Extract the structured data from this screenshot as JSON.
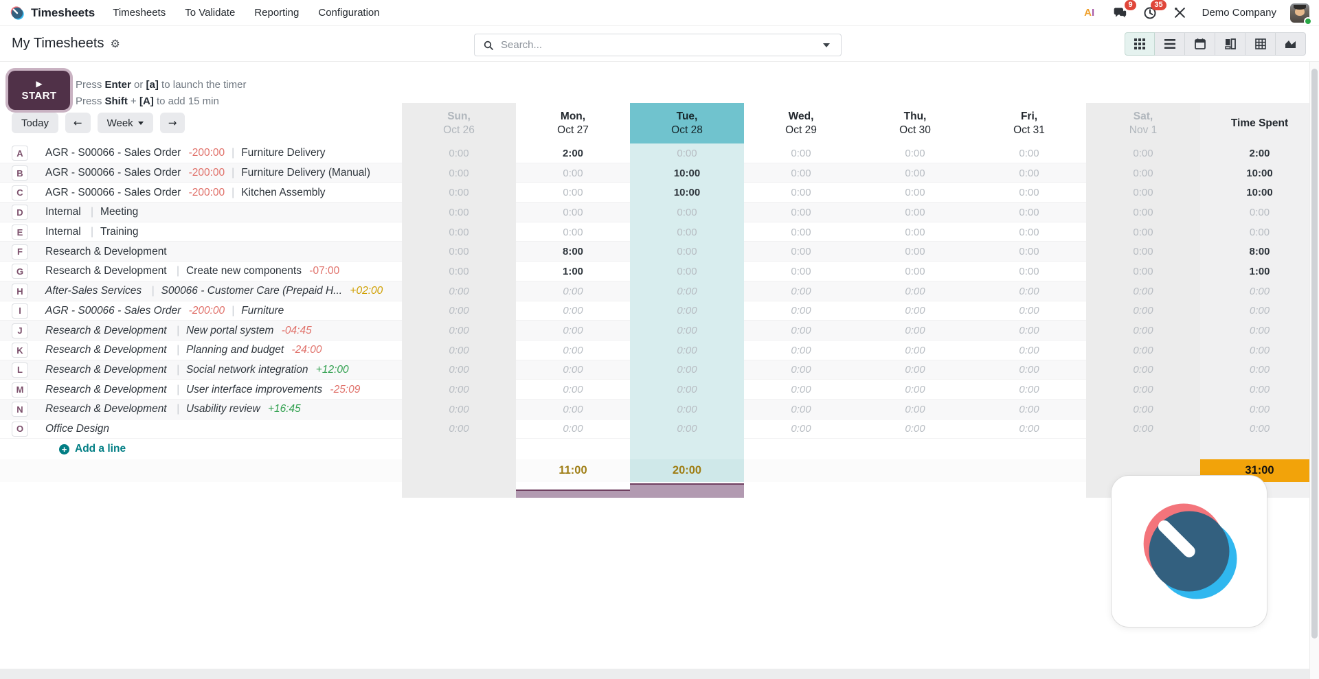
{
  "colors": {
    "accent_teal": "#70c3ce",
    "today_column_bg": "#d8edee",
    "weekend_bg": "#ececec",
    "time_spent_bg": "#f0f0f1",
    "total_orange_bg": "#f2a30a",
    "total_text_gold": "#9f7e15",
    "negative_red": "#e0716a",
    "positive_green": "#31a04f",
    "warning_amber": "#cf9f00",
    "brand_plum": "#714b67",
    "start_button_bg": "#503148",
    "bars_fill": "#b29ab1",
    "bars_border": "#6e3f60",
    "addline_teal": "#017e84",
    "badge_red": "#e0463a"
  },
  "nav": {
    "brand": "Timesheets",
    "items": [
      "Timesheets",
      "To Validate",
      "Reporting",
      "Configuration"
    ],
    "systray": {
      "ai_a": "A",
      "ai_i": "I",
      "messages_badge": "9",
      "activities_badge": "35",
      "company": "Demo Company"
    }
  },
  "control_panel": {
    "title": "My Timesheets",
    "search_placeholder": "Search...",
    "active_view": "grid",
    "views": [
      "grid",
      "list",
      "calendar",
      "kanban",
      "pivot",
      "graph"
    ]
  },
  "timer": {
    "start_label": "START",
    "hints": [
      {
        "segments": [
          {
            "text": "Press ",
            "bold": false
          },
          {
            "text": "Enter",
            "bold": true
          },
          {
            "text": " or ",
            "bold": false
          },
          {
            "text": "[a]",
            "bold": true
          },
          {
            "text": " to launch the timer",
            "bold": false
          }
        ]
      },
      {
        "segments": [
          {
            "text": "Press ",
            "bold": false
          },
          {
            "text": "Shift",
            "bold": true
          },
          {
            "text": " + ",
            "bold": false
          },
          {
            "text": "[A]",
            "bold": true
          },
          {
            "text": " to add 15 min",
            "bold": false
          }
        ]
      }
    ]
  },
  "grid": {
    "today_label": "Today",
    "range_label": "Week",
    "prev_arrow": "←",
    "next_arrow": "→",
    "columns": [
      {
        "label": "Sun,",
        "date": "Oct 26",
        "kind": "weekend"
      },
      {
        "label": "Mon,",
        "date": "Oct 27",
        "kind": "day"
      },
      {
        "label": "Tue,",
        "date": "Oct 28",
        "kind": "today"
      },
      {
        "label": "Wed,",
        "date": "Oct 29",
        "kind": "day"
      },
      {
        "label": "Thu,",
        "date": "Oct 30",
        "kind": "day"
      },
      {
        "label": "Fri,",
        "date": "Oct 31",
        "kind": "day"
      },
      {
        "label": "Sat,",
        "date": "Nov 1",
        "kind": "weekend"
      }
    ],
    "time_spent_header": "Time Spent",
    "rows": [
      {
        "letter": "A",
        "italic": false,
        "segments": [
          {
            "text": "AGR - S00066 - Sales Order",
            "kind": "name"
          },
          {
            "text": "-200:00",
            "kind": "neg"
          },
          {
            "text": "|",
            "kind": "sep"
          },
          {
            "text": "Furniture Delivery",
            "kind": "name"
          }
        ],
        "values": [
          "0:00",
          "2:00",
          "0:00",
          "0:00",
          "0:00",
          "0:00",
          "0:00"
        ],
        "total": "2:00"
      },
      {
        "letter": "B",
        "italic": false,
        "segments": [
          {
            "text": "AGR - S00066 - Sales Order",
            "kind": "name"
          },
          {
            "text": "-200:00",
            "kind": "neg"
          },
          {
            "text": "|",
            "kind": "sep"
          },
          {
            "text": "Furniture Delivery (Manual)",
            "kind": "name"
          }
        ],
        "values": [
          "0:00",
          "0:00",
          "10:00",
          "0:00",
          "0:00",
          "0:00",
          "0:00"
        ],
        "total": "10:00"
      },
      {
        "letter": "C",
        "italic": false,
        "segments": [
          {
            "text": "AGR - S00066 - Sales Order",
            "kind": "name"
          },
          {
            "text": "-200:00",
            "kind": "neg"
          },
          {
            "text": "|",
            "kind": "sep"
          },
          {
            "text": "Kitchen Assembly",
            "kind": "name"
          }
        ],
        "values": [
          "0:00",
          "0:00",
          "10:00",
          "0:00",
          "0:00",
          "0:00",
          "0:00"
        ],
        "total": "10:00"
      },
      {
        "letter": "D",
        "italic": false,
        "segments": [
          {
            "text": "Internal",
            "kind": "name"
          },
          {
            "text": "|",
            "kind": "sep"
          },
          {
            "text": "Meeting",
            "kind": "name"
          }
        ],
        "values": [
          "0:00",
          "0:00",
          "0:00",
          "0:00",
          "0:00",
          "0:00",
          "0:00"
        ],
        "total": "0:00"
      },
      {
        "letter": "E",
        "italic": false,
        "segments": [
          {
            "text": "Internal",
            "kind": "name"
          },
          {
            "text": "|",
            "kind": "sep"
          },
          {
            "text": "Training",
            "kind": "name"
          }
        ],
        "values": [
          "0:00",
          "0:00",
          "0:00",
          "0:00",
          "0:00",
          "0:00",
          "0:00"
        ],
        "total": "0:00"
      },
      {
        "letter": "F",
        "italic": false,
        "segments": [
          {
            "text": "Research & Development",
            "kind": "name"
          }
        ],
        "values": [
          "0:00",
          "8:00",
          "0:00",
          "0:00",
          "0:00",
          "0:00",
          "0:00"
        ],
        "total": "8:00"
      },
      {
        "letter": "G",
        "italic": false,
        "segments": [
          {
            "text": "Research & Development",
            "kind": "name"
          },
          {
            "text": "|",
            "kind": "sep"
          },
          {
            "text": "Create new components",
            "kind": "name"
          },
          {
            "text": "-07:00",
            "kind": "neg"
          }
        ],
        "values": [
          "0:00",
          "1:00",
          "0:00",
          "0:00",
          "0:00",
          "0:00",
          "0:00"
        ],
        "total": "1:00"
      },
      {
        "letter": "H",
        "italic": true,
        "segments": [
          {
            "text": "After-Sales Services",
            "kind": "name"
          },
          {
            "text": "|",
            "kind": "sep"
          },
          {
            "text": "S00066 - Customer Care (Prepaid H...",
            "kind": "name"
          },
          {
            "text": "+02:00",
            "kind": "warn"
          }
        ],
        "values": [
          "0:00",
          "0:00",
          "0:00",
          "0:00",
          "0:00",
          "0:00",
          "0:00"
        ],
        "total": "0:00"
      },
      {
        "letter": "I",
        "italic": true,
        "segments": [
          {
            "text": "AGR - S00066 - Sales Order",
            "kind": "name"
          },
          {
            "text": "-200:00",
            "kind": "neg"
          },
          {
            "text": "|",
            "kind": "sep"
          },
          {
            "text": "Furniture",
            "kind": "name"
          }
        ],
        "values": [
          "0:00",
          "0:00",
          "0:00",
          "0:00",
          "0:00",
          "0:00",
          "0:00"
        ],
        "total": "0:00"
      },
      {
        "letter": "J",
        "italic": true,
        "segments": [
          {
            "text": "Research & Development",
            "kind": "name"
          },
          {
            "text": "|",
            "kind": "sep"
          },
          {
            "text": "New portal system",
            "kind": "name"
          },
          {
            "text": "-04:45",
            "kind": "neg"
          }
        ],
        "values": [
          "0:00",
          "0:00",
          "0:00",
          "0:00",
          "0:00",
          "0:00",
          "0:00"
        ],
        "total": "0:00"
      },
      {
        "letter": "K",
        "italic": true,
        "segments": [
          {
            "text": "Research & Development",
            "kind": "name"
          },
          {
            "text": "|",
            "kind": "sep"
          },
          {
            "text": "Planning and budget",
            "kind": "name"
          },
          {
            "text": "-24:00",
            "kind": "neg"
          }
        ],
        "values": [
          "0:00",
          "0:00",
          "0:00",
          "0:00",
          "0:00",
          "0:00",
          "0:00"
        ],
        "total": "0:00"
      },
      {
        "letter": "L",
        "italic": true,
        "segments": [
          {
            "text": "Research & Development",
            "kind": "name"
          },
          {
            "text": "|",
            "kind": "sep"
          },
          {
            "text": "Social network integration",
            "kind": "name"
          },
          {
            "text": "+12:00",
            "kind": "pos"
          }
        ],
        "values": [
          "0:00",
          "0:00",
          "0:00",
          "0:00",
          "0:00",
          "0:00",
          "0:00"
        ],
        "total": "0:00"
      },
      {
        "letter": "M",
        "italic": true,
        "segments": [
          {
            "text": "Research & Development",
            "kind": "name"
          },
          {
            "text": "|",
            "kind": "sep"
          },
          {
            "text": "User interface improvements",
            "kind": "name"
          },
          {
            "text": "-25:09",
            "kind": "neg"
          }
        ],
        "values": [
          "0:00",
          "0:00",
          "0:00",
          "0:00",
          "0:00",
          "0:00",
          "0:00"
        ],
        "total": "0:00"
      },
      {
        "letter": "N",
        "italic": true,
        "segments": [
          {
            "text": "Research & Development",
            "kind": "name"
          },
          {
            "text": "|",
            "kind": "sep"
          },
          {
            "text": "Usability review",
            "kind": "name"
          },
          {
            "text": "+16:45",
            "kind": "pos"
          }
        ],
        "values": [
          "0:00",
          "0:00",
          "0:00",
          "0:00",
          "0:00",
          "0:00",
          "0:00"
        ],
        "total": "0:00"
      },
      {
        "letter": "O",
        "italic": true,
        "segments": [
          {
            "text": "Office Design",
            "kind": "name"
          }
        ],
        "values": [
          "0:00",
          "0:00",
          "0:00",
          "0:00",
          "0:00",
          "0:00",
          "0:00"
        ],
        "total": "0:00"
      }
    ],
    "add_line_label": "Add a line",
    "totals": {
      "per_column": [
        "",
        "11:00",
        "20:00",
        "",
        "",
        "",
        ""
      ],
      "time_spent": "31:00"
    },
    "footer_bars": [
      {
        "column": "Mon",
        "value": 11
      },
      {
        "column": "Tue",
        "value": 20
      }
    ],
    "bars_max": 20
  }
}
